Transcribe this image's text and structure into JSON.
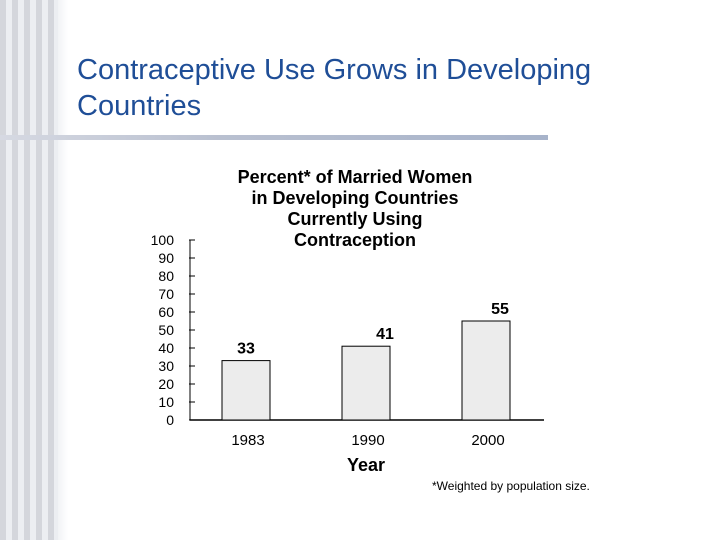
{
  "slide": {
    "title": "Contraceptive Use Grows in Developing Countries",
    "footnote": "*Weighted by population size."
  },
  "colors": {
    "title": "#1f4e97",
    "bar_fill": "#ececec",
    "bar_stroke": "#000000"
  },
  "chart_data": {
    "type": "bar",
    "title_lines": [
      "Percent* of Married Women",
      "in Developing Countries",
      "Currently Using",
      "Contraception"
    ],
    "categories": [
      "1983",
      "1990",
      "2000"
    ],
    "values": [
      33,
      41,
      55
    ],
    "data_labels": [
      "33",
      "41",
      "55"
    ],
    "xlabel": "Year",
    "ylabel": "",
    "ylim": [
      0,
      100
    ],
    "yticks": [
      "0",
      "10",
      "20",
      "30",
      "40",
      "50",
      "60",
      "70",
      "80",
      "90",
      "100"
    ],
    "grid": false,
    "legend": "none"
  }
}
